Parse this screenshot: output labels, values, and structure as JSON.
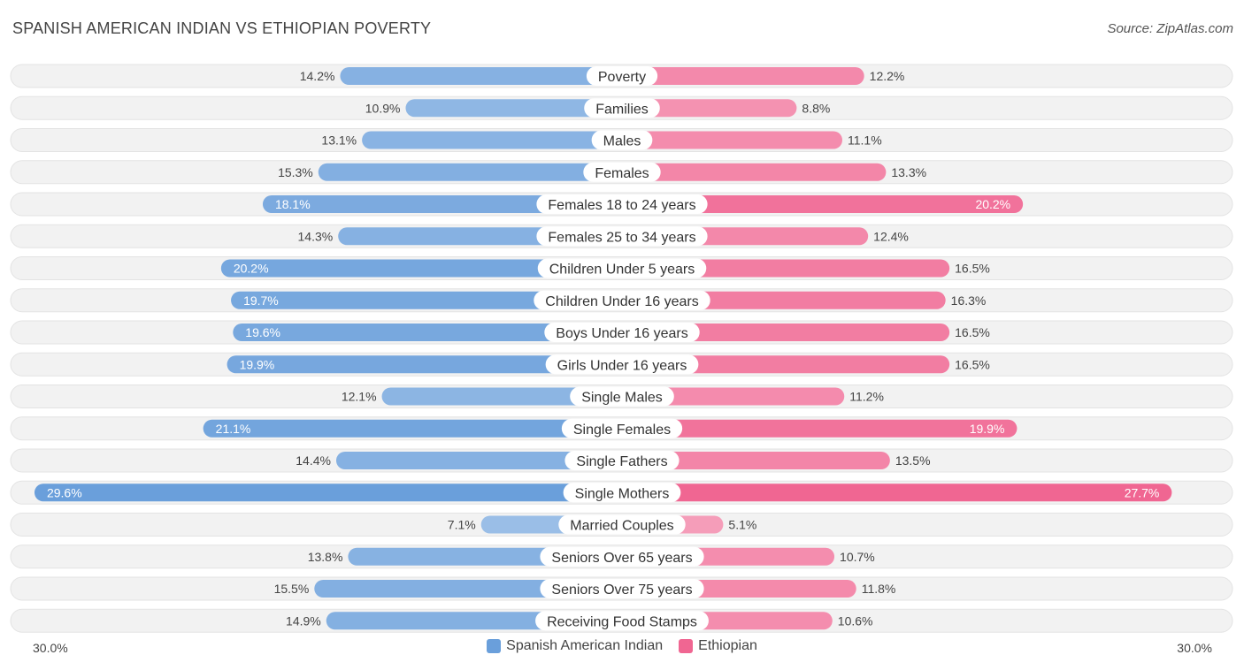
{
  "chart_data": {
    "type": "bar",
    "orientation": "diverging-horizontal",
    "title": "SPANISH AMERICAN INDIAN VS ETHIOPIAN POVERTY",
    "source": "Source: ZipAtlas.com",
    "axis_min_label": "30.0%",
    "axis_max_label": "30.0%",
    "axis_max": 30.0,
    "unit": "%",
    "categories": [
      "Poverty",
      "Families",
      "Males",
      "Females",
      "Females 18 to 24 years",
      "Females 25 to 34 years",
      "Children Under 5 years",
      "Children Under 16 years",
      "Boys Under 16 years",
      "Girls Under 16 years",
      "Single Males",
      "Single Females",
      "Single Fathers",
      "Single Mothers",
      "Married Couples",
      "Seniors Over 65 years",
      "Seniors Over 75 years",
      "Receiving Food Stamps"
    ],
    "series": [
      {
        "name": "Spanish American Indian",
        "color": "#6a9fdb",
        "values": [
          14.2,
          10.9,
          13.1,
          15.3,
          18.1,
          14.3,
          20.2,
          19.7,
          19.6,
          19.9,
          12.1,
          21.1,
          14.4,
          29.6,
          7.1,
          13.8,
          15.5,
          14.9
        ]
      },
      {
        "name": "Ethiopian",
        "color": "#f06692",
        "values": [
          12.2,
          8.8,
          11.1,
          13.3,
          20.2,
          12.4,
          16.5,
          16.3,
          16.5,
          16.5,
          11.2,
          19.9,
          13.5,
          27.7,
          5.1,
          10.7,
          11.8,
          10.6
        ]
      }
    ],
    "legend": {
      "position": "bottom-center"
    }
  }
}
